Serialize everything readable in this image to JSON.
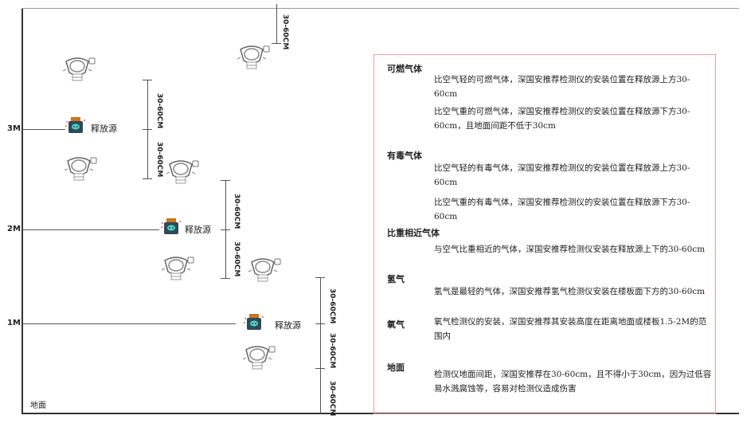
{
  "levels": {
    "m3": "3M",
    "m2": "2M",
    "m1": "1M",
    "ground": "地面"
  },
  "source_label": "释放源",
  "dimension_label": "30-60CM",
  "colors": {
    "box_border": "#f29aa3",
    "source_body": "#2e4a5a",
    "source_lid": "#c9761e",
    "source_face": "#4fd1c5"
  },
  "notes": {
    "combustible": {
      "title": "可燃气体",
      "p1": "比空气轻的可燃气体，深国安推荐检测仪的安装位置在释放源上方30-60cm",
      "p2": "比空气重的可燃气体，深国安推荐检测仪的安装位置在释放源下方30-60cm，且地面间距不低于30cm"
    },
    "toxic": {
      "title": "有毒气体",
      "p1": "比空气轻的有毒气体，深国安推荐检测仪的安装位置在释放源上方30-60cm",
      "p2": "比空气重的有毒气体，深国安推荐检测仪的安装位置在释放源下方30-60cm"
    },
    "similar": {
      "title": "比重相近气体",
      "p1": "与空气比重相近的气体，深国安推荐检测仪安装在释放源上下的30-60cm"
    },
    "hydrogen": {
      "title": "氢气",
      "p1": "氢气是最轻的气体，深国安推荐氢气检测仪安装在楼板面下方的30-60cm"
    },
    "oxygen": {
      "title": "氧气",
      "p1": "氧气检测仪的安装，深国安推荐其安装高度在距离地面或楼板1.5-2M的范围内"
    },
    "ground": {
      "title": "地面",
      "p1": "检测仪地面间距，深国安推荐在30-60cm，且不得小于30cm，因为过低容易水溅腐蚀等，容易对检测仪造成伤害"
    }
  }
}
